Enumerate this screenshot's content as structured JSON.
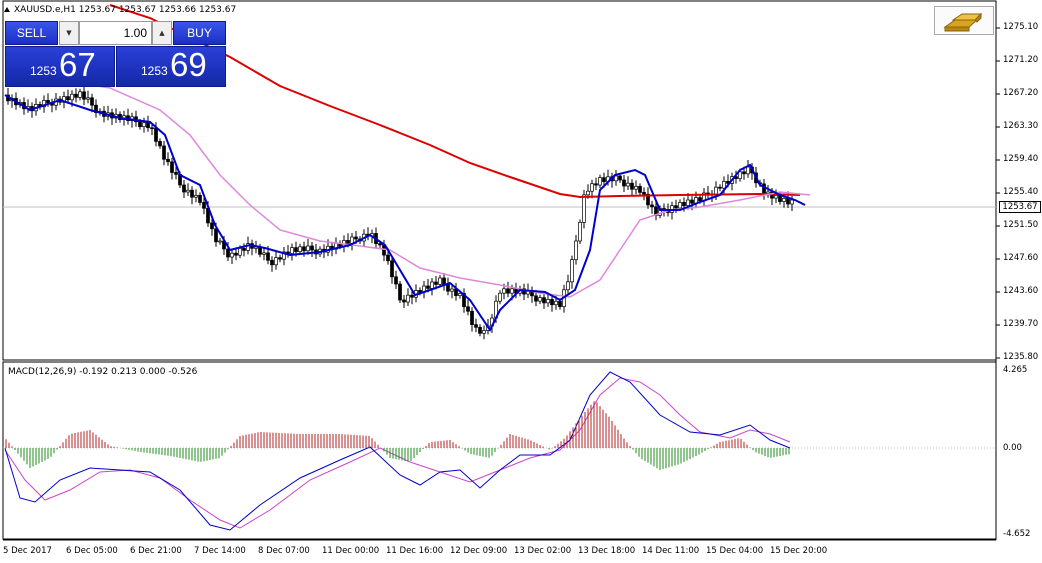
{
  "symbol": {
    "title": "XAUUSD.e,H1  1253.67 1253.67 1253.66 1253.67"
  },
  "trade_panel": {
    "sell_label": "SELL",
    "buy_label": "BUY",
    "lot_value": "1.00",
    "sell_price_small": "1253",
    "sell_price_big": "67",
    "buy_price_small": "1253",
    "buy_price_big": "69"
  },
  "price_axis": {
    "labels": [
      "1275.10",
      "1271.20",
      "1267.20",
      "1263.30",
      "1259.40",
      "1255.40",
      "1251.50",
      "1247.60",
      "1243.60",
      "1239.70",
      "1235.80"
    ],
    "current_price": "1253.67"
  },
  "macd": {
    "title": "MACD(12,26,9) -0.192 0.213 0.000 -0.526",
    "axis_labels": [
      "4.265",
      "0.00",
      "-4.652"
    ]
  },
  "time_axis": {
    "labels": [
      "5 Dec 2017",
      "6 Dec 05:00",
      "6 Dec 21:00",
      "7 Dec 14:00",
      "8 Dec 07:00",
      "11 Dec 00:00",
      "11 Dec 16:00",
      "12 Dec 09:00",
      "13 Dec 02:00",
      "13 Dec 18:00",
      "14 Dec 11:00",
      "15 Dec 04:00",
      "15 Dec 20:00"
    ]
  },
  "icons": {
    "gold": "gold-bars-icon",
    "lot_down": "triangle-down-icon",
    "lot_up": "triangle-up-icon",
    "title_arrow": "triangle-up-icon"
  },
  "colors": {
    "sell_button": "#1c2fc8",
    "buy_button": "#1c2fc8",
    "ma_fast": "#0000cc",
    "ma_slow": "#dd0000",
    "ma_mid": "#dd88dd",
    "macd_hist_up": "#b22222",
    "macd_hist_down": "#228b22",
    "macd_line": "#0000cc",
    "signal_line": "#cc44cc"
  }
}
